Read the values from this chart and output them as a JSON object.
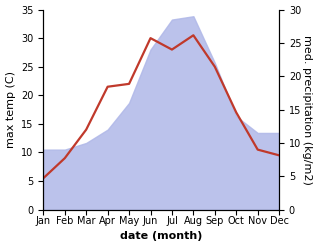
{
  "months": [
    "Jan",
    "Feb",
    "Mar",
    "Apr",
    "May",
    "Jun",
    "Jul",
    "Aug",
    "Sep",
    "Oct",
    "Nov",
    "Dec"
  ],
  "temperature": [
    5.5,
    9.0,
    14.0,
    21.5,
    22.0,
    30.0,
    28.0,
    30.5,
    25.0,
    17.0,
    10.5,
    9.5
  ],
  "precipitation": [
    9.0,
    9.0,
    10.0,
    12.0,
    16.0,
    24.0,
    28.5,
    29.0,
    22.0,
    14.0,
    11.5,
    11.5
  ],
  "temp_color": "#c0392b",
  "precip_color": "#b0b8e8",
  "temp_ylim": [
    0,
    35
  ],
  "precip_ylim": [
    0,
    30
  ],
  "temp_yticks": [
    0,
    5,
    10,
    15,
    20,
    25,
    30,
    35
  ],
  "precip_yticks": [
    0,
    5,
    10,
    15,
    20,
    25,
    30
  ],
  "xlabel": "date (month)",
  "ylabel_left": "max temp (C)",
  "ylabel_right": "med. precipitation (kg/m2)",
  "label_fontsize": 8,
  "tick_fontsize": 7,
  "line_width": 1.6,
  "precip_alpha": 0.85
}
